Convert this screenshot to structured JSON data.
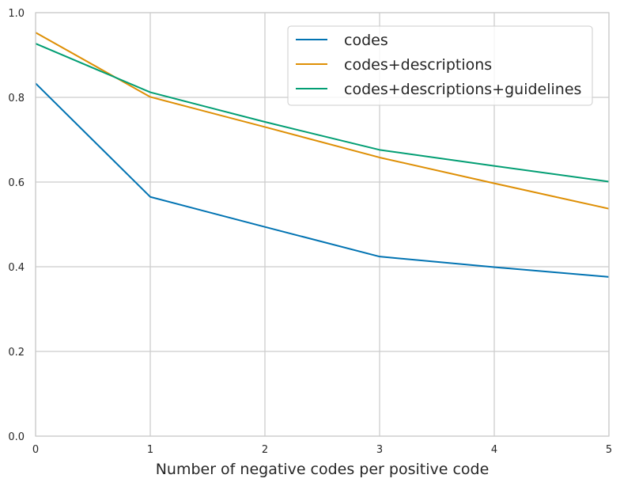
{
  "chart_data": {
    "type": "line",
    "title": "",
    "xlabel": "Number of negative codes per positive code",
    "ylabel": "",
    "x": [
      0,
      1,
      2,
      3,
      4,
      5
    ],
    "xlim": [
      0,
      5
    ],
    "ylim": [
      0.0,
      1.0
    ],
    "xticks": [
      0,
      1,
      2,
      3,
      4,
      5
    ],
    "xtick_labels": [
      "0",
      "1",
      "2",
      "3",
      "4",
      "5"
    ],
    "yticks": [
      0.0,
      0.2,
      0.4,
      0.6,
      0.8,
      1.0
    ],
    "ytick_labels": [
      "0.0",
      "0.2",
      "0.4",
      "0.6",
      "0.8",
      "1.0"
    ],
    "grid": true,
    "legend_position": "top-right",
    "series": [
      {
        "name": "codes",
        "color": "#0173b2",
        "values": [
          0.833,
          0.565,
          0.494,
          0.424,
          0.399,
          0.376
        ]
      },
      {
        "name": "codes+descriptions",
        "color": "#de8f05",
        "values": [
          0.953,
          0.801,
          0.73,
          0.658,
          0.597,
          0.537
        ]
      },
      {
        "name": "codes+descriptions+guidelines",
        "color": "#029e73",
        "values": [
          0.927,
          0.812,
          0.742,
          0.676,
          0.638,
          0.601
        ]
      }
    ]
  }
}
